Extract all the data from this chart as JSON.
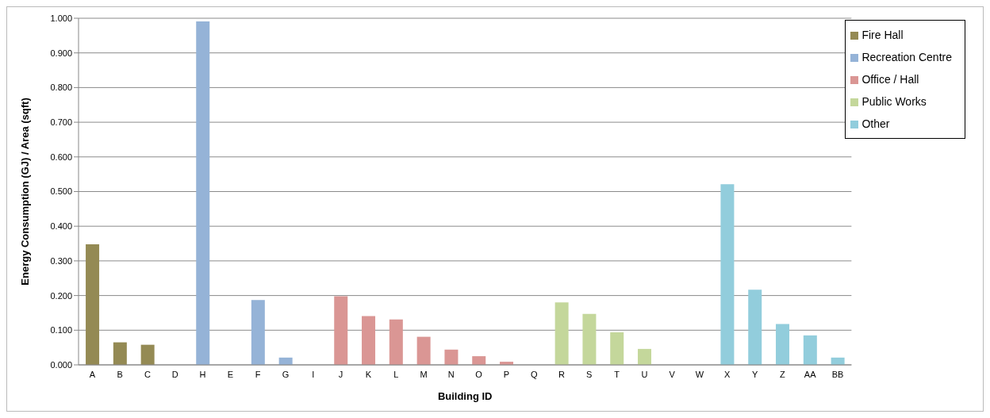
{
  "chart_data": {
    "type": "bar",
    "stacked": true,
    "xlabel": "Building ID",
    "ylabel": "Energy Consumption (GJ) / Area (sqft)",
    "categories": [
      "A",
      "B",
      "C",
      "D",
      "H",
      "E",
      "F",
      "G",
      "I",
      "J",
      "K",
      "L",
      "M",
      "N",
      "O",
      "P",
      "Q",
      "R",
      "S",
      "T",
      "U",
      "V",
      "W",
      "X",
      "Y",
      "Z",
      "AA",
      "BB"
    ],
    "series": [
      {
        "name": "Fire Hall",
        "color": "#948a54",
        "values": [
          0.348,
          0.065,
          0.058,
          0,
          null,
          null,
          null,
          null,
          null,
          null,
          null,
          null,
          null,
          null,
          null,
          null,
          null,
          null,
          null,
          null,
          null,
          null,
          null,
          null,
          null,
          null,
          null,
          null
        ]
      },
      {
        "name": "Recreation Centre",
        "color": "#95b3d7",
        "values": [
          null,
          null,
          null,
          null,
          0.991,
          0,
          0.187,
          0.021,
          0,
          null,
          null,
          null,
          null,
          null,
          null,
          null,
          null,
          null,
          null,
          null,
          null,
          null,
          null,
          null,
          null,
          null,
          null,
          null
        ]
      },
      {
        "name": "Office / Hall",
        "color": "#da9694",
        "values": [
          null,
          null,
          null,
          null,
          null,
          null,
          null,
          null,
          null,
          0.198,
          0.141,
          0.131,
          0.081,
          0.044,
          0.025,
          0.009,
          0,
          null,
          null,
          null,
          null,
          null,
          null,
          null,
          null,
          null,
          null,
          null
        ]
      },
      {
        "name": "Public Works",
        "color": "#c4d79b",
        "values": [
          null,
          null,
          null,
          null,
          null,
          null,
          null,
          null,
          null,
          null,
          null,
          null,
          null,
          null,
          null,
          null,
          null,
          0.18,
          0.147,
          0.094,
          0.046,
          0,
          0,
          null,
          null,
          null,
          null,
          null
        ]
      },
      {
        "name": "Other",
        "color": "#92cddc",
        "values": [
          null,
          null,
          null,
          null,
          null,
          null,
          null,
          null,
          null,
          null,
          null,
          null,
          null,
          null,
          null,
          null,
          null,
          null,
          null,
          null,
          null,
          null,
          null,
          0.521,
          0.217,
          0.118,
          0.085,
          0.021
        ]
      }
    ],
    "ylim": [
      0,
      1
    ],
    "yticks": [
      {
        "value": 0,
        "label": "0.000"
      },
      {
        "value": 0.1,
        "label": "0.100"
      },
      {
        "value": 0.2,
        "label": "0.200"
      },
      {
        "value": 0.3,
        "label": "0.300"
      },
      {
        "value": 0.4,
        "label": "0.400"
      },
      {
        "value": 0.5,
        "label": "0.500"
      },
      {
        "value": 0.6,
        "label": "0.600"
      },
      {
        "value": 0.7,
        "label": "0.700"
      },
      {
        "value": 0.8,
        "label": "0.800"
      },
      {
        "value": 0.9,
        "label": "0.900"
      },
      {
        "value": 1,
        "label": "1.000"
      }
    ],
    "grid": "y",
    "legend": "top right"
  }
}
